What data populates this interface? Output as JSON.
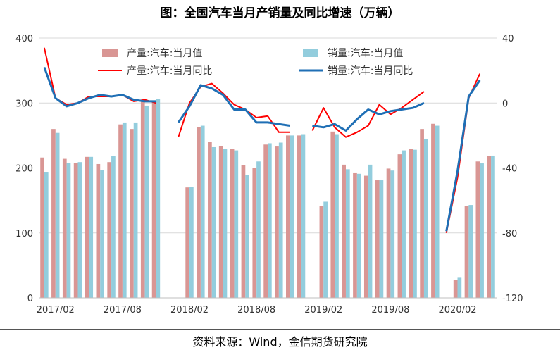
{
  "title": "图：全国汽车当月产销量及同比增速（万辆）",
  "source": "资料来源：Wind，金信期货研究院",
  "colors": {
    "production_bar": "#d99694",
    "sales_bar": "#93cddd",
    "production_yoy": "#ff0000",
    "sales_yoy": "#1f6fb5"
  },
  "chart_data": {
    "type": "bar+line",
    "x": [
      "2017/01",
      "2017/02",
      "2017/03",
      "2017/04",
      "2017/05",
      "2017/06",
      "2017/07",
      "2017/08",
      "2017/09",
      "2017/10",
      "2017/11",
      "2017/12",
      "2018/01",
      "2018/02",
      "2018/03",
      "2018/04",
      "2018/05",
      "2018/06",
      "2018/07",
      "2018/08",
      "2018/09",
      "2018/10",
      "2018/11",
      "2018/12",
      "2019/01",
      "2019/02",
      "2019/03",
      "2019/04",
      "2019/05",
      "2019/06",
      "2019/07",
      "2019/08",
      "2019/09",
      "2019/10",
      "2019/11",
      "2019/12",
      "2020/01",
      "2020/02",
      "2020/03",
      "2020/04",
      "2020/05"
    ],
    "x_tick_labels": [
      "2017/02",
      "2017/08",
      "2018/02",
      "2018/08",
      "2019/02",
      "2019/08",
      "2020/02"
    ],
    "y_left": {
      "min": 0,
      "max": 400,
      "ticks": [
        0,
        100,
        200,
        300,
        400
      ]
    },
    "y_right": {
      "min": -120,
      "max": 40,
      "ticks": [
        -120,
        -80,
        -40,
        0,
        40
      ]
    },
    "grid": true,
    "legend_position": "top",
    "series": [
      {
        "name": "产量:汽车:当月值",
        "type": "bar",
        "axis": "left",
        "values": [
          216,
          260,
          214,
          208,
          217,
          206,
          209,
          267,
          260,
          305,
          302,
          null,
          null,
          170,
          263,
          240,
          234,
          229,
          204,
          200,
          236,
          233,
          250,
          250,
          null,
          141,
          256,
          205,
          193,
          188,
          181,
          199,
          221,
          229,
          260,
          268,
          null,
          28,
          142,
          210,
          218
        ]
      },
      {
        "name": "销量:汽车:当月值",
        "type": "bar",
        "axis": "left",
        "values": [
          194,
          254,
          208,
          209,
          217,
          197,
          218,
          270,
          270,
          296,
          306,
          null,
          null,
          171,
          265,
          232,
          229,
          227,
          189,
          210,
          238,
          239,
          250,
          252,
          null,
          148,
          252,
          198,
          191,
          205,
          181,
          196,
          227,
          228,
          245,
          265,
          null,
          31,
          143,
          207,
          219
        ]
      },
      {
        "name": "产量:汽车:当月同比",
        "type": "line",
        "axis": "right",
        "values": [
          34,
          3,
          -1,
          0,
          4,
          4,
          4,
          5,
          1,
          2,
          0,
          null,
          -21,
          0,
          10,
          12,
          6,
          -1,
          -4,
          -9,
          -8,
          -18,
          -18,
          null,
          -17,
          -3,
          -15,
          -21,
          -18,
          -14,
          -1,
          -7,
          -3,
          2,
          7,
          null,
          -80,
          -46,
          3,
          18,
          null
        ]
      },
      {
        "name": "销量:汽车:当月同比",
        "type": "line",
        "axis": "right",
        "values": [
          22,
          3,
          -2,
          0,
          3,
          5,
          4,
          5,
          2,
          1,
          1,
          null,
          -12,
          -2,
          11,
          9,
          5,
          -4,
          -4,
          -12,
          -12,
          -13,
          -14,
          null,
          -14,
          -15,
          -13,
          -17,
          -10,
          -4,
          -7,
          -5,
          -4,
          -3,
          0,
          null,
          -79,
          -42,
          4,
          14,
          null
        ]
      }
    ]
  }
}
